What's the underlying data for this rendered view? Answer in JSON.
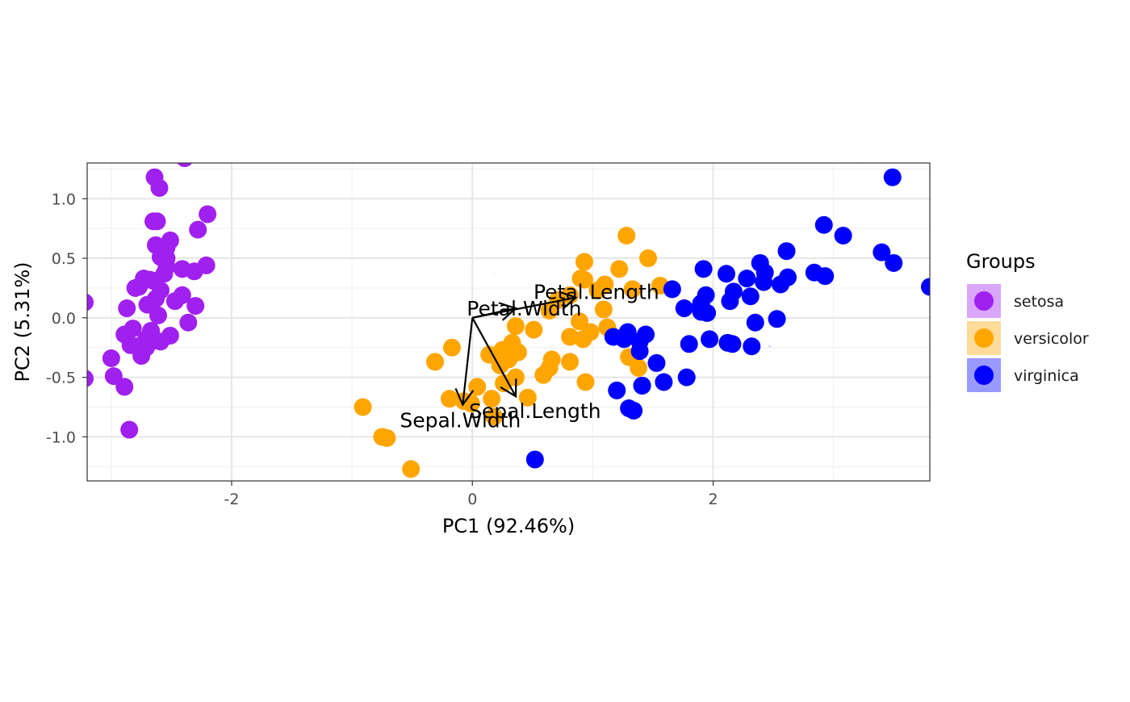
{
  "chart_data": {
    "type": "scatter",
    "xlabel": "PC1 (92.46%)",
    "ylabel": "PC2 (5.31%)",
    "xlim": [
      -3.2,
      3.8
    ],
    "ylim": [
      -1.37,
      1.3
    ],
    "x_ticks": [
      -2,
      0,
      2
    ],
    "x_tick_labels": [
      "-2",
      "0",
      "2"
    ],
    "y_ticks": [
      -1.0,
      -0.5,
      0.0,
      0.5,
      1.0
    ],
    "y_tick_labels": [
      "-1.0",
      "-0.5",
      "0.0",
      "0.5",
      "1.0"
    ],
    "grid": true,
    "legend": {
      "title": "Groups",
      "position": "right"
    },
    "series": [
      {
        "name": "setosa",
        "color": "#A020F0",
        "ellipse": {
          "cx": -2.73,
          "cy": -0.21,
          "semi_major": 1.13,
          "semi_minor": 0.26,
          "angle_deg": -75
        },
        "points": [
          [
            -2.68,
            0.32
          ],
          [
            -2.71,
            -0.18
          ],
          [
            -2.89,
            -0.14
          ],
          [
            -2.75,
            -0.32
          ],
          [
            -2.73,
            0.33
          ],
          [
            -2.28,
            0.74
          ],
          [
            -2.82,
            -0.09
          ],
          [
            -2.63,
            0.16
          ],
          [
            -2.89,
            -0.58
          ],
          [
            -2.67,
            -0.11
          ],
          [
            -2.51,
            0.65
          ],
          [
            -2.61,
            0.02
          ],
          [
            -2.79,
            -0.24
          ],
          [
            -3.22,
            -0.51
          ],
          [
            -2.64,
            1.18
          ],
          [
            -2.39,
            1.34
          ],
          [
            -2.62,
            0.81
          ],
          [
            -2.65,
            0.31
          ],
          [
            -2.2,
            0.87
          ],
          [
            -2.59,
            0.51
          ],
          [
            -2.31,
            0.39
          ],
          [
            -2.54,
            0.43
          ],
          [
            -3.22,
            0.13
          ],
          [
            -2.3,
            0.1
          ],
          [
            -2.36,
            -0.04
          ],
          [
            -2.51,
            -0.15
          ],
          [
            -2.47,
            0.14
          ],
          [
            -2.56,
            0.37
          ],
          [
            -2.64,
            0.31
          ],
          [
            -2.63,
            -0.19
          ],
          [
            -2.59,
            -0.2
          ],
          [
            -2.41,
            0.41
          ],
          [
            -2.65,
            0.81
          ],
          [
            -2.6,
            1.09
          ],
          [
            -2.67,
            -0.11
          ],
          [
            -2.87,
            0.08
          ],
          [
            -2.63,
            0.61
          ],
          [
            -2.8,
            0.25
          ],
          [
            -2.98,
            -0.49
          ],
          [
            -2.59,
            0.23
          ],
          [
            -2.77,
            0.26
          ],
          [
            -2.85,
            -0.94
          ],
          [
            -3,
            -0.34
          ],
          [
            -2.41,
            0.19
          ],
          [
            -2.21,
            0.44
          ],
          [
            -2.71,
            -0.25
          ],
          [
            -2.54,
            0.5
          ],
          [
            -2.84,
            -0.23
          ],
          [
            -2.54,
            0.59
          ],
          [
            -2.7,
            0.11
          ]
        ]
      },
      {
        "name": "versicolor",
        "color": "#FFA500",
        "ellipse": {
          "cx": 0.19,
          "cy": 0.37,
          "semi_major": 1.41,
          "semi_minor": 0.3,
          "angle_deg": -30
        },
        "points": [
          [
            1.28,
            0.69
          ],
          [
            0.93,
            0.32
          ],
          [
            1.46,
            0.5
          ],
          [
            0.18,
            -0.83
          ],
          [
            1.09,
            0.07
          ],
          [
            0.64,
            -0.42
          ],
          [
            1.1,
            0.28
          ],
          [
            -0.75,
            -1
          ],
          [
            1.04,
            0.23
          ],
          [
            -0.01,
            -0.72
          ],
          [
            -0.51,
            -1.27
          ],
          [
            0.51,
            -0.1
          ],
          [
            0.26,
            -0.55
          ],
          [
            0.98,
            -0.12
          ],
          [
            -0.17,
            -0.25
          ],
          [
            0.93,
            0.47
          ],
          [
            0.66,
            -0.35
          ],
          [
            0.24,
            -0.33
          ],
          [
            0.94,
            -0.54
          ],
          [
            0.04,
            -0.58
          ],
          [
            1.12,
            -0.08
          ],
          [
            0.36,
            -0.07
          ],
          [
            1.3,
            -0.33
          ],
          [
            0.92,
            -0.18
          ],
          [
            0.71,
            0.15
          ],
          [
            0.9,
            0.33
          ],
          [
            1.33,
            0.24
          ],
          [
            1.56,
            0.27
          ],
          [
            0.81,
            -0.16
          ],
          [
            -0.31,
            -0.37
          ],
          [
            -0.07,
            -0.7
          ],
          [
            -0.19,
            -0.68
          ],
          [
            0.14,
            -0.31
          ],
          [
            1.38,
            -0.42
          ],
          [
            0.59,
            -0.48
          ],
          [
            0.81,
            0.19
          ],
          [
            1.22,
            0.41
          ],
          [
            0.81,
            -0.37
          ],
          [
            0.25,
            -0.27
          ],
          [
            0.16,
            -0.68
          ],
          [
            0.46,
            -0.67
          ],
          [
            0.89,
            -0.03
          ],
          [
            0.23,
            -0.4
          ],
          [
            -0.71,
            -1.01
          ],
          [
            0.36,
            -0.5
          ],
          [
            0.33,
            -0.21
          ],
          [
            0.38,
            -0.29
          ],
          [
            0.64,
            0.06
          ],
          [
            -0.91,
            -0.75
          ],
          [
            0.3,
            -0.35
          ]
        ]
      },
      {
        "name": "virginica",
        "color": "#0000FF",
        "ellipse": {
          "cx": 2.47,
          "cy": -0.24,
          "semi_major": 1.83,
          "semi_minor": 0.49,
          "angle_deg": -31
        },
        "points": [
          [
            2.53,
            -0.01
          ],
          [
            1.41,
            -0.57
          ],
          [
            2.62,
            0.34
          ],
          [
            1.97,
            -0.18
          ],
          [
            2.35,
            -0.04
          ],
          [
            3.4,
            0.55
          ],
          [
            0.52,
            -1.19
          ],
          [
            2.93,
            0.35
          ],
          [
            2.32,
            -0.24
          ],
          [
            2.92,
            0.78
          ],
          [
            1.66,
            0.24
          ],
          [
            1.8,
            -0.22
          ],
          [
            2.17,
            0.22
          ],
          [
            1.34,
            -0.78
          ],
          [
            1.59,
            -0.54
          ],
          [
            1.9,
            0.12
          ],
          [
            1.95,
            0.04
          ],
          [
            3.49,
            1.18
          ],
          [
            3.8,
            0.26
          ],
          [
            1.3,
            -0.76
          ],
          [
            2.43,
            0.38
          ],
          [
            1.2,
            -0.61
          ],
          [
            3.5,
            0.46
          ],
          [
            1.39,
            -0.2
          ],
          [
            2.28,
            0.33
          ],
          [
            2.61,
            0.56
          ],
          [
            1.26,
            -0.18
          ],
          [
            1.29,
            -0.12
          ],
          [
            2.12,
            -0.21
          ],
          [
            2.39,
            0.46
          ],
          [
            2.84,
            0.38
          ],
          [
            3.23,
            1.37
          ],
          [
            2.16,
            -0.22
          ],
          [
            1.44,
            -0.14
          ],
          [
            1.78,
            -0.5
          ],
          [
            3.08,
            0.69
          ],
          [
            2.14,
            0.14
          ],
          [
            1.9,
            0.05
          ],
          [
            1.17,
            -0.16
          ],
          [
            2.11,
            0.37
          ],
          [
            2.31,
            0.18
          ],
          [
            1.92,
            0.41
          ],
          [
            1.41,
            -0.57
          ],
          [
            2.56,
            0.28
          ],
          [
            2.42,
            0.3
          ],
          [
            1.94,
            0.19
          ],
          [
            1.53,
            -0.38
          ],
          [
            1.76,
            0.08
          ],
          [
            1.9,
            0.12
          ],
          [
            1.39,
            -0.28
          ]
        ]
      }
    ],
    "loadings": [
      {
        "name": "Sepal.Length",
        "x": 0.36,
        "y": -0.66,
        "label_x": 0.52,
        "label_y": -0.78
      },
      {
        "name": "Sepal.Width",
        "x": -0.08,
        "y": -0.73,
        "label_x": -0.1,
        "label_y": -0.86
      },
      {
        "name": "Petal.Length",
        "x": 0.86,
        "y": 0.17,
        "label_x": 1.03,
        "label_y": 0.22
      },
      {
        "name": "Petal.Width",
        "x": 0.36,
        "y": 0.08,
        "label_x": 0.43,
        "label_y": 0.08
      }
    ]
  }
}
